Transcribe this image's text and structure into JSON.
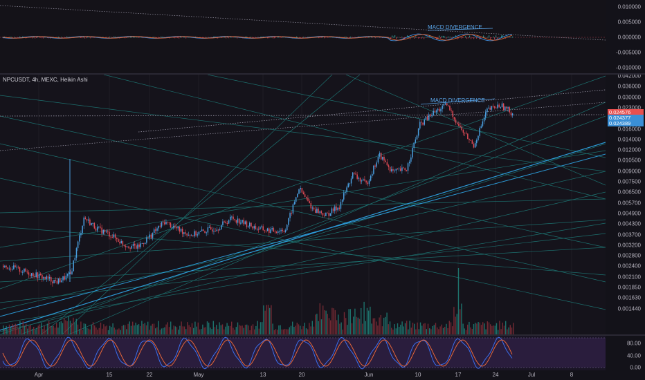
{
  "symbol": {
    "pair": "NPCUSDT",
    "timeframe": "4h",
    "exchange": "MEXC",
    "style": "Heikin Ashi",
    "legend_text": "NPCUSDT, 4h, MEXC, Heikin Ashi"
  },
  "macd_axis": [
    "0.010000",
    "0.005000",
    "0.000000",
    "-0.005000",
    "-0.010000"
  ],
  "price_axis": [
    "0.042000",
    "0.036000",
    "0.030000",
    "0.023000",
    "0.019000",
    "0.016000",
    "0.014000",
    "0.012000",
    "0.010500",
    "0.009000",
    "0.007500",
    "0.006500",
    "0.005700",
    "0.004900",
    "0.004300",
    "0.003700",
    "0.003200",
    "0.002800",
    "0.002400",
    "0.002100",
    "0.001850",
    "0.001630",
    "0.001440"
  ],
  "stoch_axis": [
    "80.00",
    "40.00",
    "0.00"
  ],
  "time_axis": [
    "Apr",
    "15",
    "22",
    "May",
    "13",
    "20",
    "Jun",
    "10",
    "17",
    "24",
    "Jul",
    "8"
  ],
  "price_tags": [
    {
      "value": "0.024576",
      "color": "#e8504f"
    },
    {
      "value": "0.024377",
      "color": "#3a8fd6"
    },
    {
      "value": "0.024389",
      "color": "#3a8fd6"
    }
  ],
  "annotations": {
    "macd_label": "MACD DIVERGENCE",
    "price_label": "MACD DIVERGENCE"
  },
  "colors": {
    "up": "#4a9fe0",
    "down": "#e04a55",
    "trendline": "#1f8f8a",
    "stoch_k": "#3b6ff0",
    "stoch_d": "#e8673a"
  },
  "chart_data": {
    "type": "candlestick",
    "series": [
      {
        "name": "NPCUSDT",
        "approx_close": [
          0.00268,
          0.00255,
          0.0024,
          0.00225,
          0.00212,
          0.00235,
          0.0054,
          0.0046,
          0.0042,
          0.00365,
          0.0035,
          0.0042,
          0.0051,
          0.00455,
          0.0042,
          0.00445,
          0.0047,
          0.0054,
          0.00495,
          0.0046,
          0.00445,
          0.00455,
          0.0083,
          0.0062,
          0.0056,
          0.0064,
          0.0102,
          0.0088,
          0.0135,
          0.0105,
          0.011,
          0.021,
          0.025,
          0.028,
          0.02,
          0.0155,
          0.026,
          0.028,
          0.0245
        ]
      }
    ],
    "ylim": [
      0.00144,
      0.042
    ],
    "yscale": "log",
    "x_range": [
      "Apr",
      "Jul"
    ]
  }
}
